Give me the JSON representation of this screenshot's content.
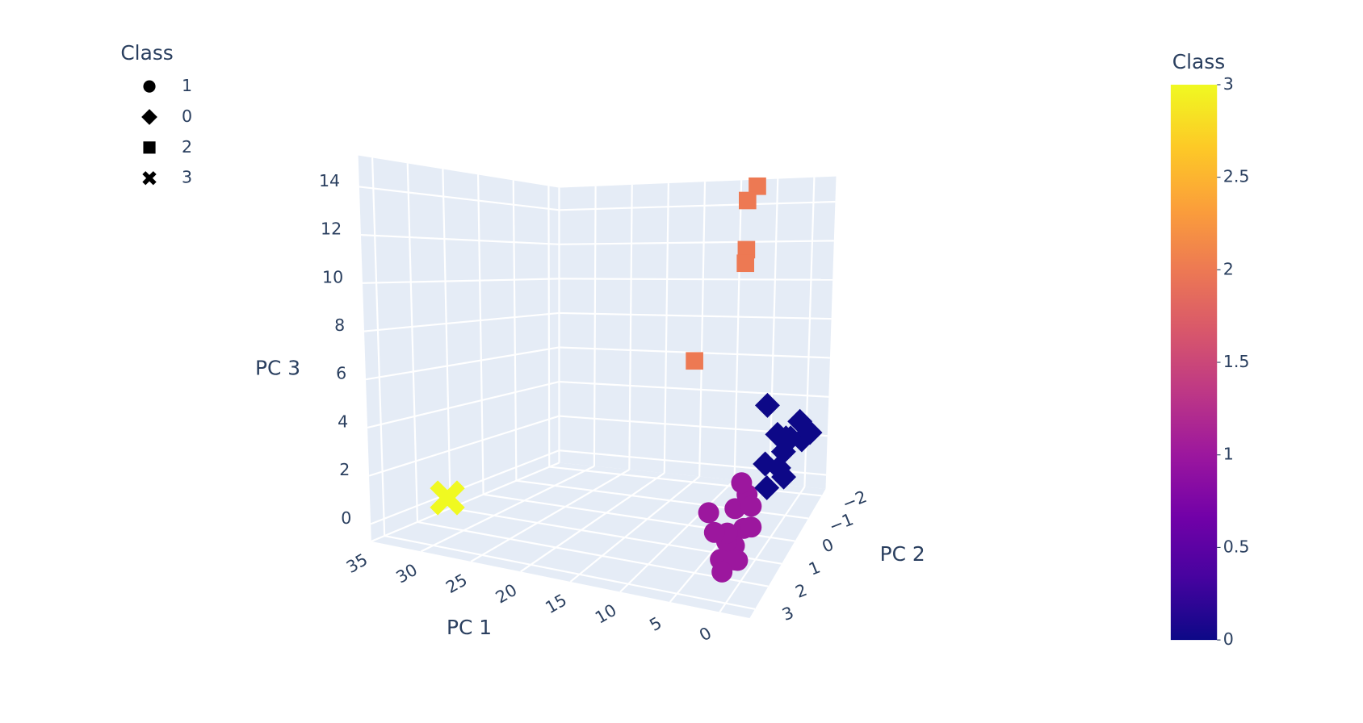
{
  "chart_data": {
    "type": "scatter3d",
    "xaxis_title": "PC 1",
    "yaxis_title": "PC 2",
    "zaxis_title": "PC 3",
    "xlim": [
      -3,
      35
    ],
    "ylim": [
      -2.3,
      3.4
    ],
    "zlim": [
      -0.72,
      15.3
    ],
    "xticks": [
      0,
      5,
      10,
      15,
      20,
      25,
      30,
      35
    ],
    "yticks": [
      {
        "value": -2,
        "label": "−2"
      },
      {
        "value": -1,
        "label": "−1"
      },
      0,
      1,
      2,
      3
    ],
    "zticks": [
      0,
      2,
      4,
      6,
      8,
      10,
      12,
      14
    ],
    "grid": true,
    "legend_title": "Class",
    "legend_position": "top-left",
    "series": [
      {
        "name": "1",
        "symbol": "circle",
        "color": "#9c179e",
        "x": [
          0.5,
          1,
          1.5,
          2,
          0,
          -0.5,
          1,
          2.5,
          3,
          1.5,
          0.5,
          2,
          1,
          0,
          4
        ],
        "y": [
          1.5,
          1.8,
          2,
          1.2,
          2.2,
          1.6,
          1,
          1.4,
          1.9,
          2.4,
          2.1,
          0.8,
          2.6,
          1.3,
          1.7
        ],
        "z": [
          1,
          0.5,
          0.8,
          1.5,
          0.3,
          1.2,
          2,
          0.6,
          1,
          0.4,
          0.2,
          2.3,
          0.1,
          1.8,
          1.6
        ]
      },
      {
        "name": "0",
        "symbol": "diamond",
        "color": "#0d0887",
        "x": [
          0,
          -1,
          -0.5,
          0.5,
          -1.5,
          0,
          1,
          -1,
          0.5,
          -0.5,
          3,
          1.5
        ],
        "y": [
          -0.8,
          -1.5,
          -1,
          -1.2,
          -1.8,
          -0.5,
          -0.9,
          -0.3,
          0,
          -1.6,
          -1.2,
          -0.4
        ],
        "z": [
          2.5,
          2.5,
          3,
          2.8,
          2.6,
          2,
          3.2,
          1.8,
          1.5,
          3.3,
          4.3,
          2.2
        ]
      },
      {
        "name": "2",
        "symbol": "square",
        "color": "#ed7953",
        "x": [
          1,
          1.5,
          2,
          1.5,
          7
        ],
        "y": [
          0.5,
          0.8,
          0.6,
          0.9,
          1
        ],
        "z": [
          15.2,
          14.6,
          12.4,
          11.9,
          7.5
        ]
      },
      {
        "name": "3",
        "symbol": "x",
        "color": "#f0f921",
        "x": [
          30
        ],
        "y": [
          2.5
        ],
        "z": [
          1
        ]
      }
    ],
    "colorbar": {
      "title": "Class",
      "lim": [
        0,
        3
      ],
      "ticks": [
        0,
        0.5,
        1,
        1.5,
        2,
        2.5,
        3
      ],
      "colorscale": [
        "#0d0887",
        "#46039f",
        "#7201a8",
        "#9c179e",
        "#bd3786",
        "#d8576b",
        "#ed7953",
        "#fb9f3a",
        "#fdca26",
        "#f0f921"
      ]
    }
  }
}
